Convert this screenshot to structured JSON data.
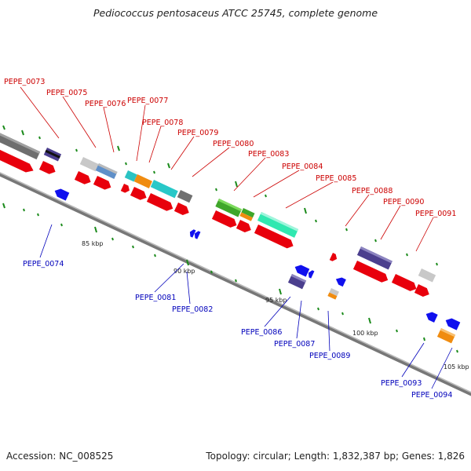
{
  "title": "Pediococcus pentosaceus ATCC 25745, complete genome",
  "footer": {
    "accession": "Accession: NC_008525",
    "topology": "Topology: circular; Length: 1,832,387 bp; Genes: 1,826"
  },
  "colors": {
    "forward_gene": "#e8000c",
    "reverse_gene": "#1010ee",
    "backbone": "#777777",
    "tick": "#1a8a1a",
    "label_top": "#cc0000",
    "label_bottom": "#0000bb"
  },
  "kbp_labels": [
    "85 kbp",
    "90 kbp",
    "95 kbp",
    "100 kbp",
    "105 kbp"
  ],
  "labels_top": [
    "PEPE_0073",
    "PEPE_0075",
    "PEPE_0076",
    "PEPE_0077",
    "PEPE_0078",
    "PEPE_0079",
    "PEPE_0080",
    "PEPE_0083",
    "PEPE_0084",
    "PEPE_0085",
    "PEPE_0088",
    "PEPE_0090",
    "PEPE_0091"
  ],
  "labels_bottom": [
    "PEPE_0074",
    "PEPE_0081",
    "PEPE_0082",
    "PEPE_0086",
    "PEPE_0087",
    "PEPE_0089",
    "PEPE_0093",
    "PEPE_0094"
  ]
}
